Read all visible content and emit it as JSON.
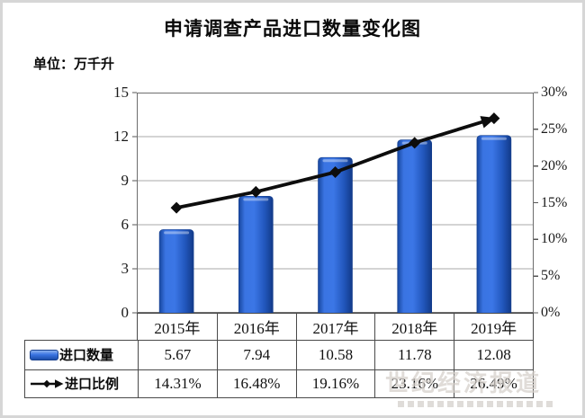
{
  "page": {
    "title": "申请调查产品进口数量变化图",
    "unit_label": "单位：万千升"
  },
  "chart_data": {
    "type": "bar",
    "subtype": "bar-line-combo",
    "title": "申请调查产品进口数量变化图",
    "unit_label": "单位：万千升",
    "categories": [
      "2015年",
      "2016年",
      "2017年",
      "2018年",
      "2019年"
    ],
    "series": [
      {
        "name": "进口数量",
        "type": "bar",
        "axis": "left",
        "values": [
          5.67,
          7.94,
          10.58,
          11.78,
          12.08
        ],
        "labels": [
          "5.67",
          "7.94",
          "10.58",
          "11.78",
          "12.08"
        ],
        "color": "#2f6bd8"
      },
      {
        "name": "进口比例",
        "type": "line",
        "axis": "right",
        "values": [
          14.31,
          16.48,
          19.16,
          23.16,
          26.49
        ],
        "labels": [
          "14.31%",
          "16.48%",
          "19.16%",
          "23.16%",
          "26.49%"
        ],
        "color": "#0d0d0d"
      }
    ],
    "left_axis": {
      "min": 0,
      "max": 15,
      "tick_values": [
        15,
        12,
        9,
        6,
        3,
        0
      ],
      "tick_labels": [
        "15",
        "12",
        "9",
        "6",
        "3",
        "0"
      ]
    },
    "right_axis": {
      "min": 0,
      "max": 30,
      "tick_values": [
        30,
        25,
        20,
        15,
        10,
        5,
        0
      ],
      "tick_labels": [
        "30%",
        "25%",
        "20%",
        "15%",
        "10%",
        "5%",
        "0%"
      ]
    },
    "grid": "horizontal-left-axis",
    "legend_position": "table-below-chart"
  },
  "watermark": {
    "text": "世纪经济报道"
  }
}
